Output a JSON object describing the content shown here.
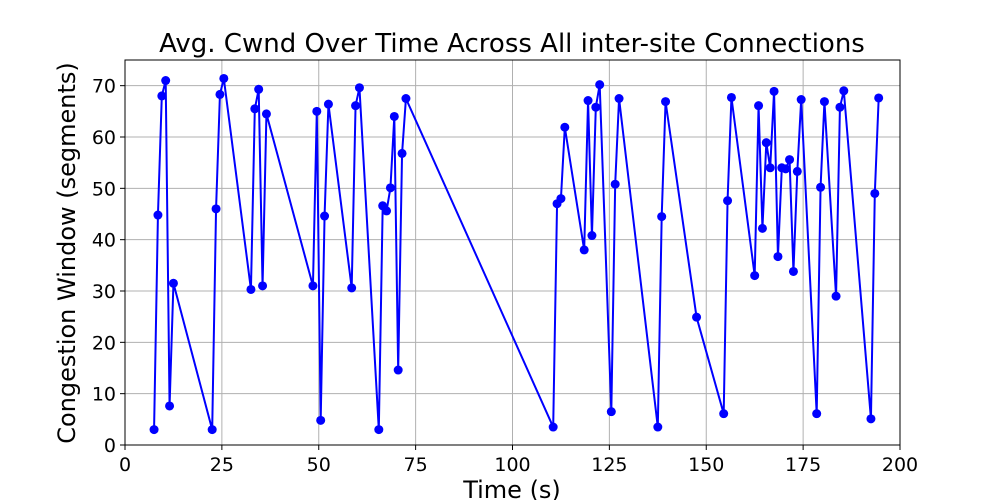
{
  "chart_data": {
    "type": "line",
    "title": "Avg. Cwnd Over Time Across All inter-site Connections",
    "xlabel": "Time (s)",
    "ylabel": "Congestion Window (segments)",
    "xlim": [
      0,
      200
    ],
    "ylim": [
      0,
      75
    ],
    "xticks": [
      0,
      25,
      50,
      75,
      100,
      125,
      150,
      175,
      200
    ],
    "yticks": [
      0,
      10,
      20,
      30,
      40,
      50,
      60,
      70
    ],
    "grid": true,
    "color": "#0000ff",
    "marker": "circle",
    "series": [
      {
        "x": [
          7.5,
          8.5,
          9.5,
          10.5,
          11.5,
          12.5,
          22.5,
          23.5,
          24.5,
          25.5,
          32.5,
          33.5,
          34.5,
          35.5,
          36.5,
          48.5,
          49.5,
          50.5,
          51.5,
          52.5,
          58.5,
          59.5,
          60.5,
          65.5,
          66.5,
          67.5,
          68.5,
          69.5,
          70.5,
          71.5,
          72.5,
          110.5,
          111.5,
          112.5,
          113.5,
          118.5,
          119.5,
          120.5,
          121.5,
          122.5,
          125.5,
          126.5,
          127.5,
          137.5,
          138.5,
          139.5,
          147.5,
          154.5,
          155.5,
          156.5,
          162.5,
          163.5,
          164.5,
          165.5,
          166.5,
          167.5,
          168.5,
          169.5,
          170.5,
          171.5,
          172.5,
          173.5,
          174.5,
          178.5,
          179.5,
          180.5,
          183.5,
          184.5,
          185.5,
          192.5,
          193.5,
          194.5
        ],
        "y": [
          3,
          44.8,
          68,
          71,
          7.6,
          31.5,
          3,
          46,
          68.3,
          71.4,
          30.3,
          65.5,
          69.3,
          31,
          64.5,
          31,
          65,
          4.8,
          44.6,
          66.4,
          30.6,
          66.1,
          69.6,
          3,
          46.6,
          45.6,
          50.1,
          64,
          14.6,
          56.8,
          67.5,
          3.5,
          47,
          48,
          61.9,
          38,
          67.1,
          40.8,
          65.8,
          70.2,
          6.5,
          50.8,
          67.5,
          3.5,
          44.5,
          66.9,
          24.9,
          6.1,
          47.6,
          67.7,
          33,
          66.1,
          42.2,
          58.9,
          54,
          68.9,
          36.7,
          54,
          53.8,
          55.6,
          33.8,
          53.3,
          67.3,
          6.1,
          50.2,
          66.9,
          29,
          65.8,
          69,
          5.1,
          49,
          67.6
        ]
      }
    ]
  }
}
